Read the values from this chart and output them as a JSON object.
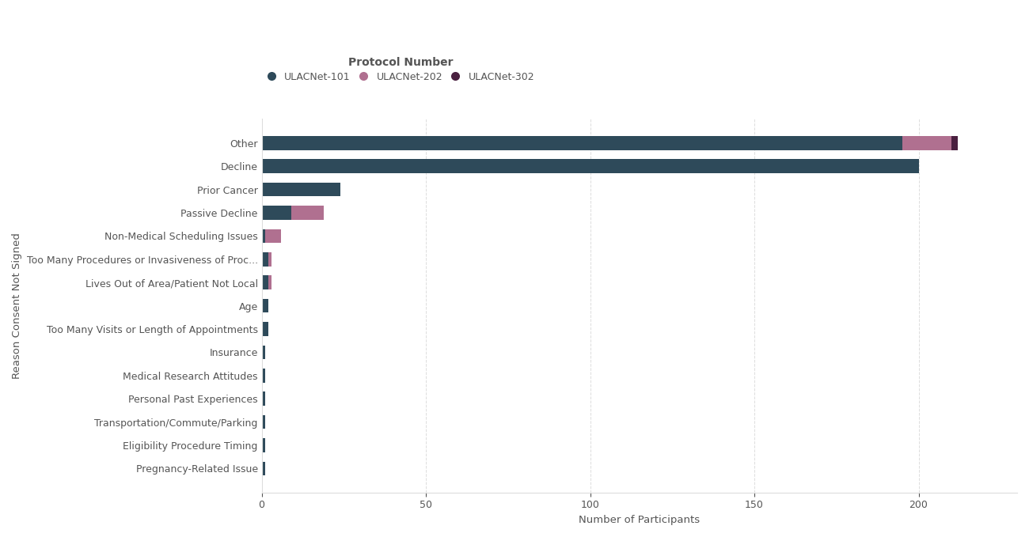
{
  "categories": [
    "Pregnancy-Related Issue",
    "Eligibility Procedure Timing",
    "Transportation/Commute/Parking",
    "Personal Past Experiences",
    "Medical Research Attitudes",
    "Insurance",
    "Too Many Visits or Length of Appointments",
    "Age",
    "Lives Out of Area/Patient Not Local",
    "Too Many Procedures or Invasiveness of Proc...",
    "Non-Medical Scheduling Issues",
    "Passive Decline",
    "Prior Cancer",
    "Decline",
    "Other"
  ],
  "series": {
    "ULACNet-101": [
      1,
      1,
      1,
      1,
      1,
      1,
      2,
      2,
      2,
      2,
      1,
      9,
      24,
      200,
      195
    ],
    "ULACNet-202": [
      0,
      0,
      0,
      0,
      0,
      0,
      0,
      0,
      1,
      1,
      5,
      10,
      0,
      0,
      15
    ],
    "ULACNet-302": [
      0,
      0,
      0,
      0,
      0,
      0,
      0,
      0,
      0,
      0,
      0,
      0,
      0,
      0,
      2
    ]
  },
  "colors": {
    "ULACNet-101": "#2E4A5A",
    "ULACNet-202": "#B07090",
    "ULACNet-302": "#4A2040"
  },
  "xlabel": "Number of Participants",
  "ylabel": "Reason Consent Not Signed",
  "legend_title": "Protocol Number",
  "background_color": "#FFFFFF",
  "grid_color": "#DDDDDD",
  "text_color": "#555555",
  "label_fontsize": 9.5,
  "tick_fontsize": 9,
  "bar_height": 0.6,
  "xlim": [
    0,
    230
  ]
}
